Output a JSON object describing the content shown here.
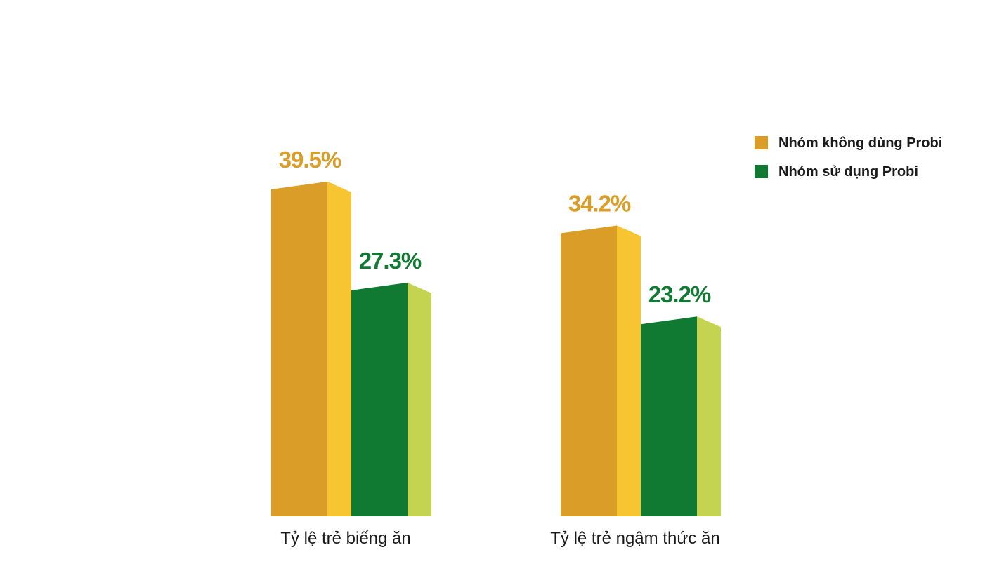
{
  "colors": {
    "series_1_front": "#DA9D28",
    "series_1_side": "#F6C531",
    "series_1_label": "#DA9D28",
    "series_2_front": "#107A32",
    "series_2_side": "#C5D450",
    "series_2_label": "#107A32",
    "category_text": "#1a1a1a"
  },
  "chart_data": {
    "type": "bar",
    "style": "3d-columns",
    "categories": [
      "Tỷ lệ trẻ biếng ăn",
      "Tỷ lệ trẻ ngậm thức ăn"
    ],
    "series": [
      {
        "name": "Nhóm không dùng Probi",
        "values": [
          39.5,
          34.2
        ],
        "labels": [
          "39.5%",
          "34.2%"
        ]
      },
      {
        "name": "Nhóm sử dụng Probi",
        "values": [
          27.3,
          23.2
        ],
        "labels": [
          "27.3%",
          "23.2%"
        ]
      }
    ],
    "unit": "%",
    "ylim": [
      0,
      40
    ],
    "grid": false,
    "axes_visible": false,
    "legend_position": "top-right",
    "title": "",
    "xlabel": "",
    "ylabel": ""
  }
}
